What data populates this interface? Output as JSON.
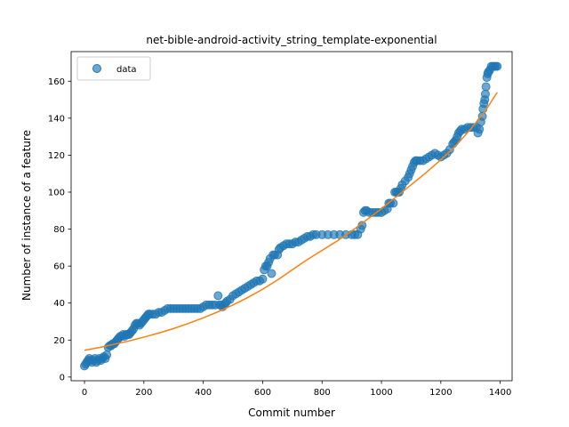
{
  "chart_data": {
    "type": "scatter",
    "title": "net-bible-android-activity_string_template-exponential",
    "xlabel": "Commit number",
    "ylabel": "Number of instance of a feature",
    "xlim": [
      -45,
      1440
    ],
    "ylim": [
      -2,
      176
    ],
    "xticks": [
      0,
      200,
      400,
      600,
      800,
      1000,
      1200,
      1400
    ],
    "yticks": [
      0,
      20,
      40,
      60,
      80,
      100,
      120,
      140,
      160
    ],
    "grid": false,
    "legend": {
      "placement": "top-left",
      "entries": [
        "data"
      ]
    },
    "colors": {
      "data": "#1f77b4",
      "fit": "#ff7f0e"
    },
    "series": [
      {
        "name": "data",
        "kind": "scatter",
        "points": [
          [
            0,
            6
          ],
          [
            4,
            7
          ],
          [
            8,
            8
          ],
          [
            12,
            9
          ],
          [
            16,
            10
          ],
          [
            20,
            9
          ],
          [
            25,
            8
          ],
          [
            30,
            9
          ],
          [
            35,
            10
          ],
          [
            40,
            8
          ],
          [
            45,
            9
          ],
          [
            50,
            10
          ],
          [
            55,
            9
          ],
          [
            60,
            10
          ],
          [
            65,
            11
          ],
          [
            70,
            10
          ],
          [
            75,
            12
          ],
          [
            80,
            16
          ],
          [
            85,
            17
          ],
          [
            90,
            17
          ],
          [
            95,
            18
          ],
          [
            100,
            18
          ],
          [
            105,
            19
          ],
          [
            110,
            20
          ],
          [
            115,
            21
          ],
          [
            120,
            22
          ],
          [
            125,
            22
          ],
          [
            130,
            23
          ],
          [
            135,
            22
          ],
          [
            140,
            23
          ],
          [
            145,
            23
          ],
          [
            150,
            23
          ],
          [
            155,
            24
          ],
          [
            160,
            25
          ],
          [
            165,
            26
          ],
          [
            170,
            28
          ],
          [
            175,
            29
          ],
          [
            180,
            29
          ],
          [
            185,
            28
          ],
          [
            190,
            29
          ],
          [
            195,
            30
          ],
          [
            200,
            31
          ],
          [
            205,
            32
          ],
          [
            210,
            33
          ],
          [
            215,
            34
          ],
          [
            220,
            34
          ],
          [
            230,
            34
          ],
          [
            240,
            34
          ],
          [
            250,
            35
          ],
          [
            260,
            35
          ],
          [
            270,
            36
          ],
          [
            280,
            37
          ],
          [
            290,
            37
          ],
          [
            300,
            37
          ],
          [
            310,
            37
          ],
          [
            320,
            37
          ],
          [
            330,
            37
          ],
          [
            340,
            37
          ],
          [
            350,
            37
          ],
          [
            360,
            37
          ],
          [
            370,
            37
          ],
          [
            380,
            37
          ],
          [
            390,
            37
          ],
          [
            400,
            38
          ],
          [
            410,
            39
          ],
          [
            420,
            39
          ],
          [
            430,
            39
          ],
          [
            440,
            39
          ],
          [
            450,
            44
          ],
          [
            455,
            39
          ],
          [
            460,
            39
          ],
          [
            465,
            38
          ],
          [
            470,
            39
          ],
          [
            475,
            40
          ],
          [
            480,
            41
          ],
          [
            490,
            42
          ],
          [
            500,
            44
          ],
          [
            510,
            45
          ],
          [
            520,
            46
          ],
          [
            530,
            47
          ],
          [
            540,
            48
          ],
          [
            550,
            49
          ],
          [
            560,
            50
          ],
          [
            570,
            51
          ],
          [
            580,
            52
          ],
          [
            590,
            52
          ],
          [
            600,
            53
          ],
          [
            605,
            58
          ],
          [
            610,
            60
          ],
          [
            615,
            60
          ],
          [
            620,
            62
          ],
          [
            625,
            64
          ],
          [
            630,
            56
          ],
          [
            635,
            66
          ],
          [
            640,
            66
          ],
          [
            650,
            66
          ],
          [
            655,
            69
          ],
          [
            660,
            70
          ],
          [
            670,
            71
          ],
          [
            680,
            72
          ],
          [
            690,
            72
          ],
          [
            700,
            72
          ],
          [
            710,
            73
          ],
          [
            720,
            73
          ],
          [
            730,
            74
          ],
          [
            740,
            75
          ],
          [
            750,
            76
          ],
          [
            760,
            76
          ],
          [
            770,
            77
          ],
          [
            780,
            77
          ],
          [
            800,
            77
          ],
          [
            820,
            77
          ],
          [
            840,
            77
          ],
          [
            860,
            77
          ],
          [
            880,
            77
          ],
          [
            900,
            77
          ],
          [
            910,
            77
          ],
          [
            920,
            77
          ],
          [
            930,
            80
          ],
          [
            935,
            82
          ],
          [
            940,
            89
          ],
          [
            945,
            90
          ],
          [
            950,
            90
          ],
          [
            960,
            89
          ],
          [
            970,
            89
          ],
          [
            980,
            89
          ],
          [
            990,
            89
          ],
          [
            1000,
            89
          ],
          [
            1010,
            90
          ],
          [
            1020,
            91
          ],
          [
            1025,
            94
          ],
          [
            1030,
            94
          ],
          [
            1040,
            94
          ],
          [
            1045,
            100
          ],
          [
            1050,
            100
          ],
          [
            1055,
            100
          ],
          [
            1060,
            100
          ],
          [
            1065,
            102
          ],
          [
            1070,
            104
          ],
          [
            1080,
            106
          ],
          [
            1090,
            108
          ],
          [
            1095,
            110
          ],
          [
            1100,
            112
          ],
          [
            1105,
            114
          ],
          [
            1110,
            116
          ],
          [
            1115,
            117
          ],
          [
            1120,
            117
          ],
          [
            1130,
            117
          ],
          [
            1140,
            117
          ],
          [
            1150,
            118
          ],
          [
            1160,
            119
          ],
          [
            1170,
            120
          ],
          [
            1180,
            121
          ],
          [
            1190,
            120
          ],
          [
            1200,
            119
          ],
          [
            1210,
            120
          ],
          [
            1220,
            121
          ],
          [
            1230,
            123
          ],
          [
            1240,
            126
          ],
          [
            1245,
            127
          ],
          [
            1250,
            128
          ],
          [
            1255,
            130
          ],
          [
            1260,
            132
          ],
          [
            1265,
            133
          ],
          [
            1270,
            134
          ],
          [
            1280,
            134
          ],
          [
            1290,
            135
          ],
          [
            1300,
            135
          ],
          [
            1310,
            135
          ],
          [
            1320,
            135
          ],
          [
            1325,
            132
          ],
          [
            1330,
            134
          ],
          [
            1335,
            138
          ],
          [
            1340,
            141
          ],
          [
            1342,
            145
          ],
          [
            1345,
            148
          ],
          [
            1348,
            150
          ],
          [
            1350,
            153
          ],
          [
            1352,
            157
          ],
          [
            1355,
            162
          ],
          [
            1358,
            164
          ],
          [
            1360,
            165
          ],
          [
            1365,
            166
          ],
          [
            1370,
            168
          ],
          [
            1375,
            168
          ],
          [
            1380,
            168
          ],
          [
            1385,
            168
          ],
          [
            1390,
            168
          ]
        ]
      },
      {
        "name": "",
        "kind": "line",
        "x": [
          0,
          50,
          100,
          150,
          200,
          250,
          300,
          350,
          400,
          450,
          500,
          550,
          600,
          650,
          700,
          750,
          800,
          850,
          900,
          950,
          1000,
          1050,
          1100,
          1150,
          1200,
          1250,
          1300,
          1350,
          1390
        ],
        "y": [
          14.5,
          16.0,
          17.7,
          19.5,
          21.6,
          23.8,
          26.2,
          29.0,
          32.0,
          35.3,
          39.0,
          43.0,
          47.5,
          52.5,
          58.0,
          63.5,
          68.5,
          73.5,
          79.0,
          85.0,
          91.0,
          97.5,
          104.0,
          110.5,
          117.5,
          125.0,
          134.0,
          144.0,
          154.0
        ]
      }
    ]
  }
}
